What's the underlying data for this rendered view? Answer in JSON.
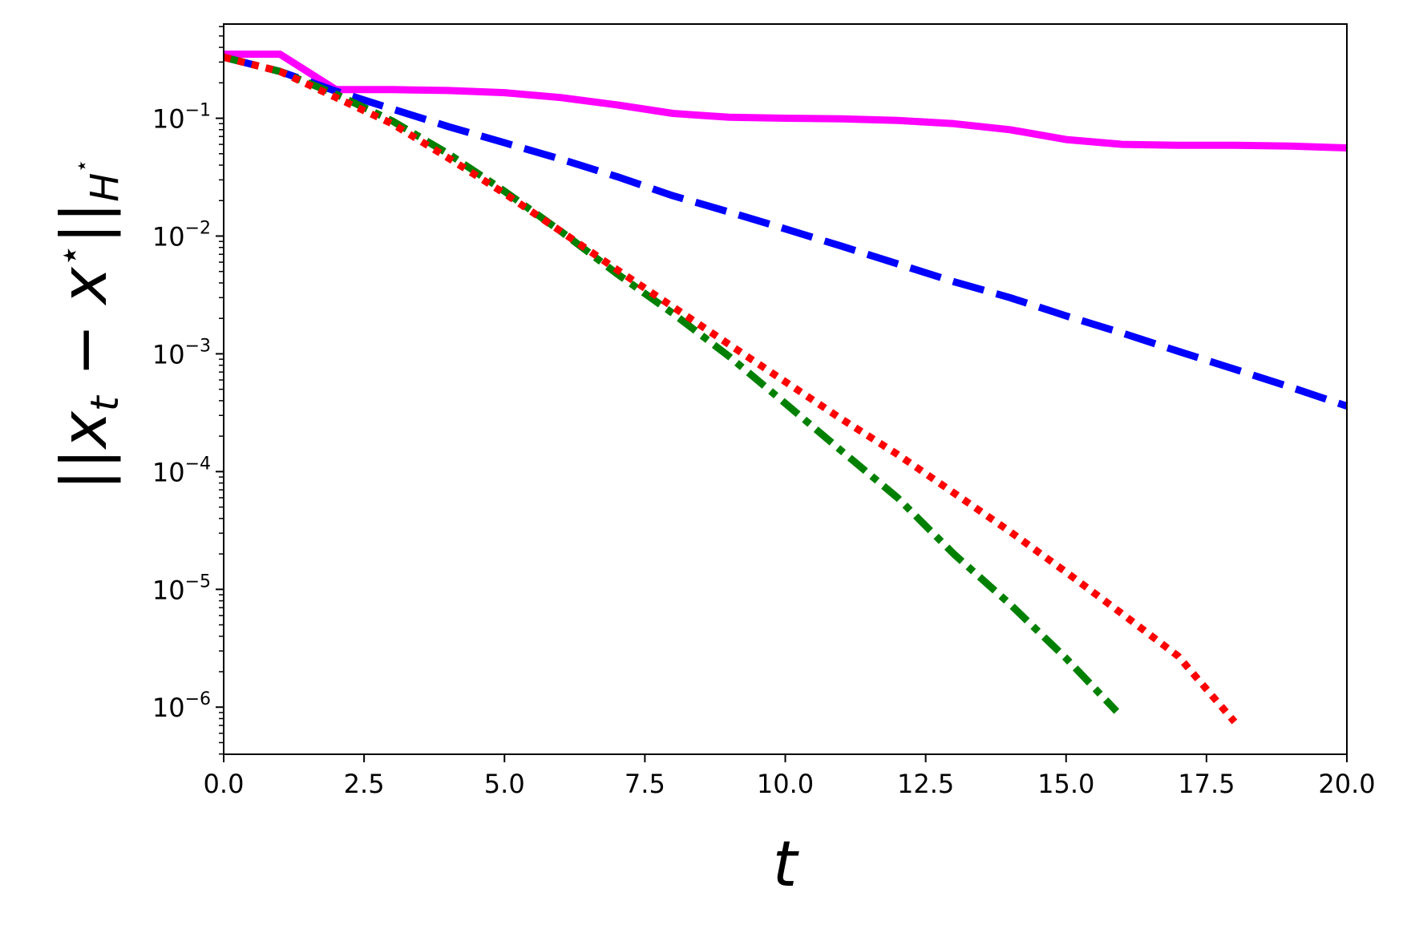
{
  "chart_data": {
    "type": "line",
    "title": "",
    "xlabel": "t",
    "ylabel": "||x_t − x*||_H*",
    "xlim": [
      0,
      20
    ],
    "ylim_log10": [
      -6.4,
      -0.2
    ],
    "yscale": "log",
    "grid": false,
    "x_ticks": [
      "0.0",
      "2.5",
      "5.0",
      "7.5",
      "10.0",
      "12.5",
      "15.0",
      "17.5",
      "20.0"
    ],
    "y_ticks": [
      {
        "base": "10",
        "exp": "−1",
        "value": 0.1
      },
      {
        "base": "10",
        "exp": "−2",
        "value": 0.01
      },
      {
        "base": "10",
        "exp": "−3",
        "value": 0.001
      },
      {
        "base": "10",
        "exp": "−4",
        "value": 0.0001
      },
      {
        "base": "10",
        "exp": "−5",
        "value": 1e-05
      },
      {
        "base": "10",
        "exp": "−6",
        "value": 1e-06
      }
    ],
    "series": [
      {
        "color": "#ff00ff",
        "style": "solid",
        "width": 9,
        "x": [
          0,
          1,
          2,
          3,
          4,
          5,
          6,
          7,
          8,
          9,
          10,
          11,
          12,
          13,
          14,
          15,
          16,
          17,
          18,
          19,
          20
        ],
        "y": [
          0.35,
          0.35,
          0.175,
          0.175,
          0.172,
          0.165,
          0.15,
          0.13,
          0.11,
          0.102,
          0.1,
          0.099,
          0.096,
          0.09,
          0.08,
          0.066,
          0.06,
          0.059,
          0.059,
          0.058,
          0.056
        ]
      },
      {
        "color": "#0000ff",
        "style": "dashed",
        "width": 9,
        "x": [
          0,
          1,
          2,
          3,
          4,
          5,
          6,
          7,
          8,
          9,
          10,
          11,
          12,
          13,
          14,
          15,
          16,
          17,
          18,
          19,
          20
        ],
        "y": [
          0.33,
          0.25,
          0.17,
          0.12,
          0.085,
          0.062,
          0.045,
          0.032,
          0.022,
          0.016,
          0.0115,
          0.0082,
          0.0058,
          0.0041,
          0.003,
          0.0021,
          0.0015,
          0.00105,
          0.00074,
          0.00052,
          0.00036
        ]
      },
      {
        "color": "#008000",
        "style": "dashdot",
        "width": 9,
        "x": [
          0,
          1,
          2,
          3,
          4,
          5,
          6,
          7,
          8,
          9,
          10,
          11,
          12,
          13,
          14,
          15,
          15.9
        ],
        "y": [
          0.33,
          0.25,
          0.16,
          0.095,
          0.05,
          0.024,
          0.011,
          0.0048,
          0.0022,
          0.00095,
          0.00038,
          0.00015,
          6e-05,
          2e-05,
          7.5e-06,
          2.6e-06,
          9.2e-07
        ]
      },
      {
        "color": "#ff0000",
        "style": "dotted",
        "width": 9,
        "x": [
          0,
          1,
          2,
          3,
          4,
          5,
          6,
          7,
          8,
          9,
          10,
          11,
          12,
          13,
          14,
          15,
          16,
          17,
          18
        ],
        "y": [
          0.33,
          0.25,
          0.15,
          0.09,
          0.046,
          0.023,
          0.011,
          0.0052,
          0.0025,
          0.0012,
          0.00058,
          0.00028,
          0.00014,
          6.6e-05,
          3.1e-05,
          1.4e-05,
          6.2e-06,
          2.7e-06,
          7.5e-07
        ]
      }
    ]
  }
}
